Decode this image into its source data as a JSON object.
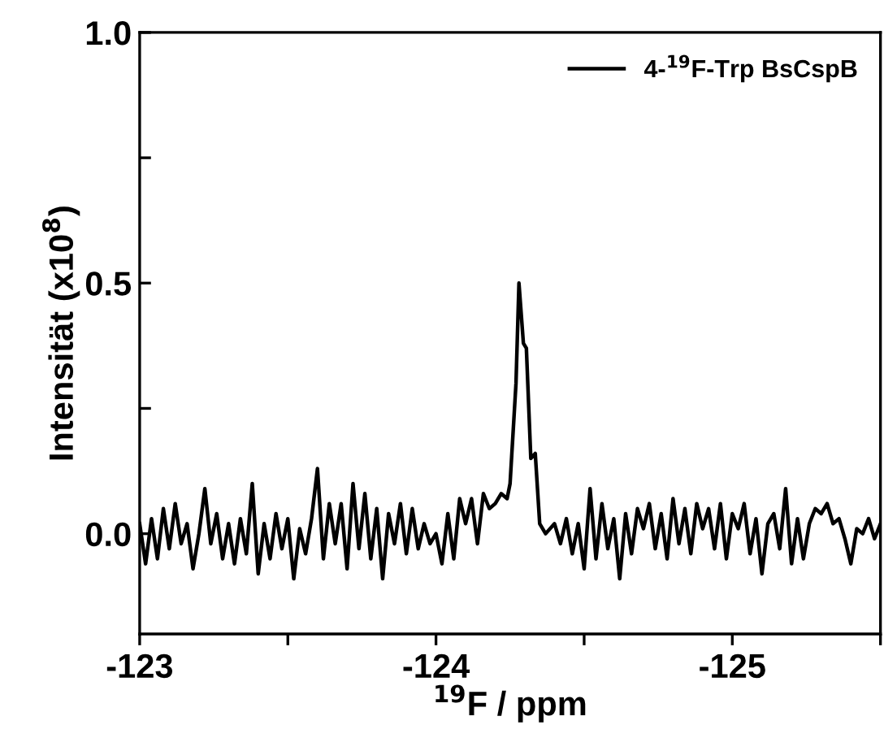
{
  "chart_data": {
    "type": "line",
    "xlabel": "$^{19}$F / ppm",
    "ylabel": "Intensität (x10$^{8}$)",
    "xlim": [
      -123,
      -125.5
    ],
    "ylim": [
      -0.2,
      1.0
    ],
    "xticks": [
      -123,
      {
        "value": -123.5,
        "label": null
      },
      -124,
      {
        "value": -124.5,
        "label": null
      },
      -125,
      {
        "value": -125.5,
        "label": null
      }
    ],
    "yticks": [
      {
        "value": 0,
        "label": "0.0"
      },
      {
        "value": 0.25,
        "label": null
      },
      0.5,
      {
        "value": 0.75,
        "label": null
      },
      {
        "value": 1,
        "label": "1.0"
      }
    ],
    "legend": "top right",
    "grid": false,
    "line_style": "solid",
    "marker": "none",
    "series": [
      {
        "name": "4-$^{19}$F-Trp BsCspB",
        "color": "#000000",
        "x": [
          -123.0,
          -123.02,
          -123.04,
          -123.06,
          -123.08,
          -123.1,
          -123.12,
          -123.14,
          -123.16,
          -123.18,
          -123.2,
          -123.22,
          -123.24,
          -123.26,
          -123.28,
          -123.3,
          -123.32,
          -123.34,
          -123.36,
          -123.38,
          -123.4,
          -123.42,
          -123.44,
          -123.46,
          -123.48,
          -123.5,
          -123.52,
          -123.54,
          -123.56,
          -123.58,
          -123.6,
          -123.62,
          -123.64,
          -123.66,
          -123.68,
          -123.7,
          -123.72,
          -123.74,
          -123.76,
          -123.78,
          -123.8,
          -123.82,
          -123.84,
          -123.86,
          -123.88,
          -123.9,
          -123.92,
          -123.94,
          -123.96,
          -123.98,
          -124.0,
          -124.02,
          -124.04,
          -124.06,
          -124.08,
          -124.1,
          -124.12,
          -124.14,
          -124.16,
          -124.18,
          -124.2,
          -124.22,
          -124.24,
          -124.25,
          -124.27,
          -124.28,
          -124.295,
          -124.305,
          -124.32,
          -124.335,
          -124.35,
          -124.37,
          -124.4,
          -124.42,
          -124.44,
          -124.46,
          -124.48,
          -124.5,
          -124.52,
          -124.54,
          -124.56,
          -124.58,
          -124.6,
          -124.62,
          -124.64,
          -124.66,
          -124.68,
          -124.7,
          -124.72,
          -124.74,
          -124.76,
          -124.78,
          -124.8,
          -124.82,
          -124.84,
          -124.86,
          -124.88,
          -124.9,
          -124.92,
          -124.94,
          -124.96,
          -124.98,
          -125.0,
          -125.02,
          -125.04,
          -125.06,
          -125.08,
          -125.1,
          -125.12,
          -125.14,
          -125.16,
          -125.18,
          -125.2,
          -125.22,
          -125.24,
          -125.26,
          -125.28,
          -125.3,
          -125.32,
          -125.34,
          -125.36,
          -125.38,
          -125.4,
          -125.42,
          -125.44,
          -125.46,
          -125.48,
          -125.5
        ],
        "values": [
          0.02,
          -0.06,
          0.03,
          -0.05,
          0.05,
          -0.03,
          0.06,
          -0.02,
          0.02,
          -0.07,
          0.0,
          0.09,
          -0.02,
          0.04,
          -0.05,
          0.02,
          -0.06,
          0.03,
          -0.04,
          0.1,
          -0.08,
          0.02,
          -0.05,
          0.04,
          -0.03,
          0.03,
          -0.09,
          0.01,
          -0.04,
          0.03,
          0.13,
          -0.05,
          0.06,
          -0.02,
          0.06,
          -0.07,
          0.1,
          -0.03,
          0.08,
          -0.05,
          0.05,
          -0.09,
          0.04,
          -0.02,
          0.06,
          -0.04,
          0.05,
          -0.03,
          0.02,
          -0.02,
          0.0,
          -0.06,
          0.04,
          -0.05,
          0.07,
          0.02,
          0.07,
          -0.02,
          0.08,
          0.05,
          0.06,
          0.08,
          0.07,
          0.1,
          0.3,
          0.5,
          0.38,
          0.37,
          0.15,
          0.16,
          0.02,
          0.0,
          0.02,
          -0.02,
          0.03,
          -0.04,
          0.02,
          -0.07,
          0.09,
          -0.05,
          0.06,
          -0.03,
          0.03,
          -0.09,
          0.04,
          -0.04,
          0.05,
          0.01,
          0.06,
          -0.03,
          0.04,
          -0.05,
          0.07,
          -0.02,
          0.05,
          -0.04,
          0.06,
          0.01,
          0.05,
          -0.03,
          0.06,
          -0.05,
          0.04,
          0.01,
          0.06,
          -0.04,
          0.03,
          -0.08,
          0.02,
          0.04,
          -0.03,
          0.09,
          -0.06,
          0.03,
          -0.05,
          0.02,
          0.05,
          0.04,
          0.06,
          0.02,
          0.03,
          -0.01,
          -0.06,
          0.01,
          0.0,
          0.03,
          -0.01,
          0.02
        ]
      }
    ]
  }
}
